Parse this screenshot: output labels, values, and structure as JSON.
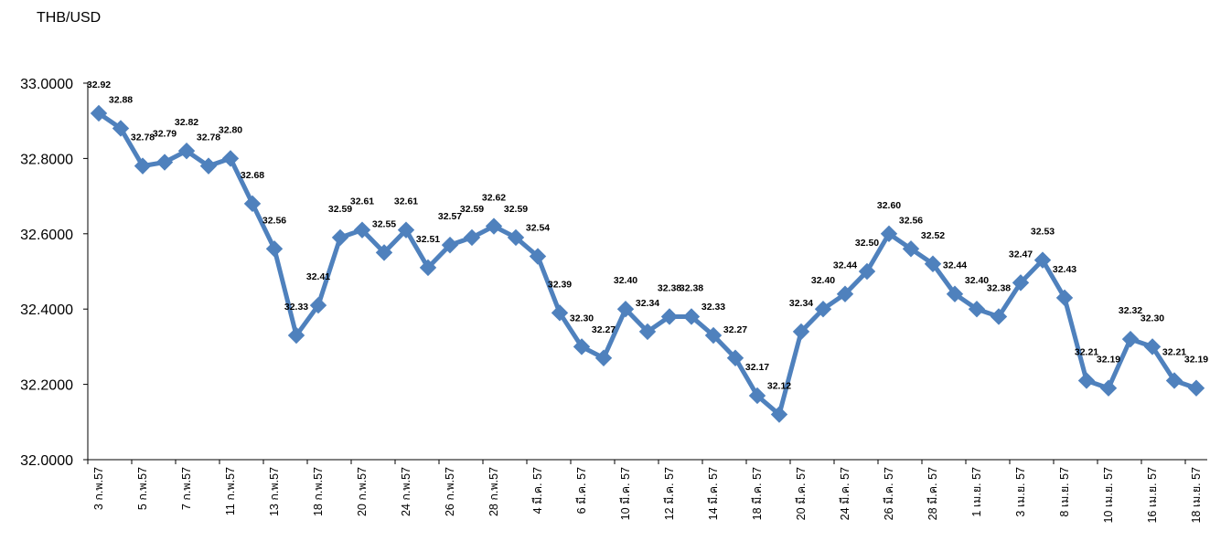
{
  "chart_data": {
    "type": "line",
    "unit_label": "THB/USD",
    "ylim": [
      32.0,
      33.0
    ],
    "yticks": [
      "32.0000",
      "32.2000",
      "32.4000",
      "32.6000",
      "32.8000",
      "33.0000"
    ],
    "grid": false,
    "legend": "none",
    "series_color": "#4F81BD",
    "x_labels": [
      "3 ก.พ.57",
      "5 ก.พ.57",
      "7 ก.พ.57",
      "11 ก.พ.57",
      "13 ก.พ.57",
      "18 ก.พ.57",
      "20 ก.พ.57",
      "24 ก.พ.57",
      "26 ก.พ.57",
      "28 ก.พ.57",
      "4 มี.ค. 57",
      "6 มี.ค. 57",
      "10 มี.ค. 57",
      "12 มี.ค. 57",
      "14 มี.ค. 57",
      "18 มี.ค. 57",
      "20 มี.ค. 57",
      "24 มี.ค. 57",
      "26 มี.ค. 57",
      "28 มี.ค. 57",
      "1 เม.ย. 57",
      "3 เม.ย. 57",
      "8 เม.ย. 57",
      "10 เม.ย. 57",
      "16 เม.ย. 57",
      "18 เม.ย. 57"
    ],
    "values": [
      32.92,
      32.88,
      32.78,
      32.79,
      32.82,
      32.78,
      32.8,
      32.68,
      32.56,
      32.33,
      32.41,
      32.59,
      32.61,
      32.55,
      32.61,
      32.51,
      32.57,
      32.59,
      32.62,
      32.59,
      32.54,
      32.39,
      32.3,
      32.27,
      32.4,
      32.34,
      32.38,
      32.38,
      32.33,
      32.27,
      32.17,
      32.12,
      32.34,
      32.4,
      32.44,
      32.5,
      32.6,
      32.56,
      32.52,
      32.44,
      32.4,
      32.38,
      32.47,
      32.53,
      32.43,
      32.21,
      32.19,
      32.32,
      32.3,
      32.21,
      32.19
    ],
    "data_labels": [
      "32.92",
      "32.88",
      "32.78",
      "32.79",
      "32.82",
      "32.78",
      "32.80",
      "32.68",
      "32.56",
      "32.33",
      "32.41",
      "32.59",
      "32.61",
      "32.55",
      "32.61",
      "32.51",
      "32.57",
      "32.59",
      "32.62",
      "32.59",
      "32.54",
      "32.39",
      "32.30",
      "32.27",
      "32.40",
      "32.34",
      "32.38",
      "32.38",
      "32.33",
      "32.27",
      "32.17",
      "32.12",
      "32.34",
      "32.40",
      "32.44",
      "32.50",
      "32.60",
      "32.56",
      "32.52",
      "32.44",
      "32.40",
      "32.38",
      "32.47",
      "32.53",
      "32.43",
      "32.21",
      "32.19",
      "32.32",
      "32.30",
      "32.21",
      "32.19"
    ]
  }
}
